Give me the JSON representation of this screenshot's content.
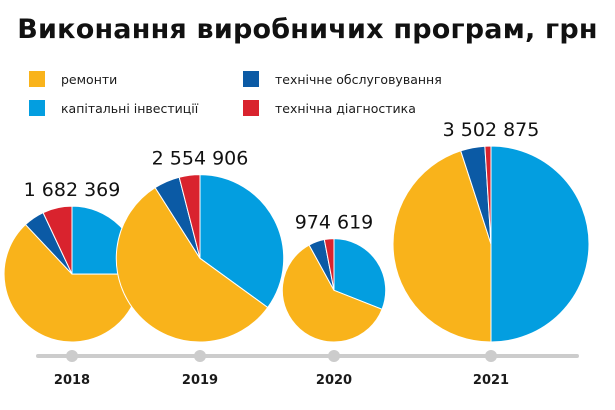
{
  "header": {
    "title": "Виконання виробничих програм, грн"
  },
  "legend": [
    {
      "label": "ремонти",
      "color": "#f9b31b"
    },
    {
      "label": "капітальні інвестиції",
      "color": "#039ee0"
    },
    {
      "label": "технічне обслуговування",
      "color": "#0b5aa5"
    },
    {
      "label": "технічна діагностика",
      "color": "#d9232e"
    }
  ],
  "chart_data": {
    "type": "pie",
    "title": "Виконання виробничих програм, грн",
    "series_names": [
      "ремонти",
      "капітальні інвестиції",
      "технічне обслуговування",
      "технічна діагностика"
    ],
    "colors": [
      "#f9b31b",
      "#039ee0",
      "#0b5aa5",
      "#d9232e"
    ],
    "pies": [
      {
        "year": "2018",
        "total": 1682369,
        "total_label": "1 682 369",
        "shares_pct": [
          63,
          25,
          5,
          7
        ]
      },
      {
        "year": "2019",
        "total": 2554906,
        "total_label": "2 554 906",
        "shares_pct": [
          56,
          35,
          5,
          4
        ]
      },
      {
        "year": "2020",
        "total": 974619,
        "total_label": "974 619",
        "shares_pct": [
          61,
          31,
          5,
          3
        ]
      },
      {
        "year": "2021",
        "total": 3502875,
        "total_label": "3 502 875",
        "shares_pct": [
          45,
          50,
          4,
          1
        ]
      }
    ],
    "timeline_color": "#cccccc"
  }
}
